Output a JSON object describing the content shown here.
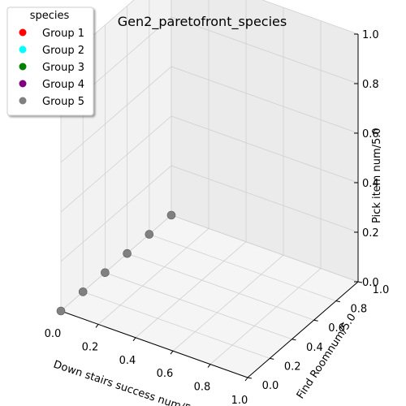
{
  "chart_data": {
    "type": "scatter",
    "projection": "3d",
    "title": "Gen2_paretofront_species",
    "xlabel": "Down stairs success num/5.0",
    "ylabel": "Find Roomnum/5.0",
    "zlabel": "Pick item num/5.0",
    "xlim": [
      0,
      1
    ],
    "ylim": [
      0,
      1
    ],
    "zlim": [
      0,
      1
    ],
    "x_ticks": [
      "0.0",
      "0.2",
      "0.4",
      "0.6",
      "0.8",
      "1.0"
    ],
    "y_ticks": [
      "0.0",
      "0.2",
      "0.4",
      "0.6",
      "0.8",
      "1.0"
    ],
    "z_ticks": [
      "0.0",
      "0.2",
      "0.4",
      "0.6",
      "0.8",
      "1.0"
    ],
    "grid": true,
    "legend": {
      "title": "species",
      "placement": "top-left",
      "entries": [
        {
          "label": "Group 1",
          "color": "#ff0000"
        },
        {
          "label": "Group 2",
          "color": "#00ffff"
        },
        {
          "label": "Group 3",
          "color": "#008000"
        },
        {
          "label": "Group 4",
          "color": "#800080"
        },
        {
          "label": "Group 5",
          "color": "#808080"
        }
      ]
    },
    "series": [
      {
        "name": "Group 5",
        "color": "#808080",
        "points": [
          {
            "x": 0,
            "y": 0.0,
            "z": 0
          },
          {
            "x": 0,
            "y": 0.2,
            "z": 0
          },
          {
            "x": 0,
            "y": 0.4,
            "z": 0
          },
          {
            "x": 0,
            "y": 0.6,
            "z": 0
          },
          {
            "x": 0,
            "y": 0.8,
            "z": 0
          },
          {
            "x": 0,
            "y": 1.0,
            "z": 0
          }
        ]
      }
    ]
  }
}
